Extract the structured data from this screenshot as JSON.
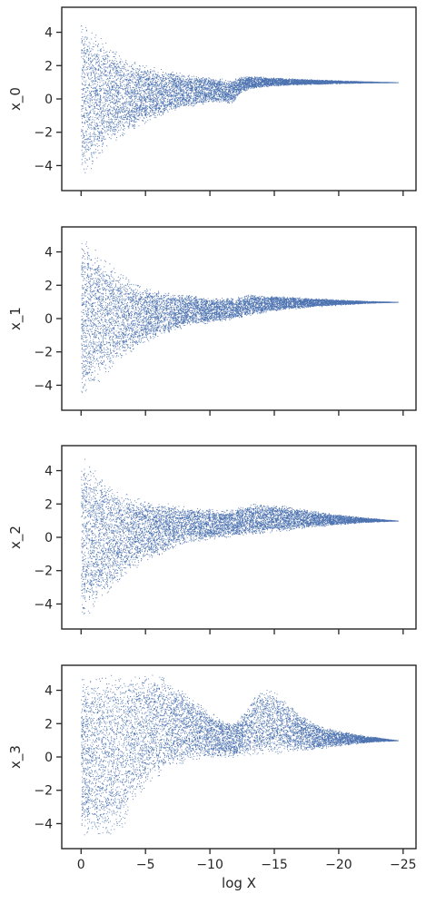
{
  "chart_data": {
    "type": "scatter",
    "layout": "4 stacked panels sharing x-axis",
    "xlabel": "log X",
    "x_axis": {
      "reversed": true,
      "xlim": [
        1.5,
        -26
      ],
      "ticks": [
        0,
        -5,
        -10,
        -15,
        -20,
        -25
      ],
      "tick_labels": [
        "0",
        "−5",
        "−10",
        "−15",
        "−20",
        "−25"
      ]
    },
    "y_axis": {
      "ylim": [
        -5.5,
        5.5
      ],
      "ticks": [
        -4,
        -2,
        0,
        2,
        4
      ],
      "tick_labels": [
        "−4",
        "−2",
        "0",
        "2",
        "4"
      ]
    },
    "grid": false,
    "marker_color": "#4c72b0",
    "panels": [
      {
        "ylabel": "x_0",
        "envelope": {
          "x": [
            0,
            -1,
            -2,
            -3,
            -4,
            -5,
            -6,
            -7,
            -8,
            -9,
            -10,
            -11,
            -11.8,
            -12.3,
            -13,
            -14,
            -15,
            -16,
            -18,
            -20,
            -22,
            -24.6
          ],
          "upper": [
            5,
            4.2,
            3.4,
            2.8,
            2.4,
            2.1,
            1.9,
            1.7,
            1.55,
            1.45,
            1.35,
            1.25,
            1.2,
            1.35,
            1.4,
            1.35,
            1.3,
            1.25,
            1.18,
            1.12,
            1.06,
            1.0
          ],
          "lower": [
            -5,
            -4.0,
            -3.0,
            -2.4,
            -1.9,
            -1.5,
            -1.1,
            -0.8,
            -0.55,
            -0.4,
            -0.3,
            -0.25,
            -0.25,
            0.3,
            0.6,
            0.7,
            0.78,
            0.83,
            0.88,
            0.93,
            0.97,
            1.0
          ]
        }
      },
      {
        "ylabel": "x_1",
        "envelope": {
          "x": [
            0,
            -1,
            -2,
            -3,
            -4,
            -5,
            -6,
            -7,
            -8,
            -9,
            -10,
            -11,
            -12,
            -13,
            -14,
            -15,
            -16,
            -18,
            -20,
            -22,
            -24.6
          ],
          "upper": [
            5,
            4.3,
            3.5,
            2.8,
            2.3,
            2.0,
            1.8,
            1.6,
            1.5,
            1.4,
            1.3,
            1.25,
            1.3,
            1.45,
            1.45,
            1.4,
            1.35,
            1.25,
            1.15,
            1.07,
            1.0
          ],
          "lower": [
            -5,
            -4.3,
            -3.4,
            -2.6,
            -2.0,
            -1.5,
            -1.1,
            -0.8,
            -0.55,
            -0.4,
            -0.25,
            -0.15,
            0.0,
            0.15,
            0.3,
            0.45,
            0.55,
            0.7,
            0.82,
            0.92,
            1.0
          ]
        }
      },
      {
        "ylabel": "x_2",
        "envelope": {
          "x": [
            0,
            -1,
            -2,
            -3,
            -4,
            -5,
            -6,
            -7,
            -8,
            -9,
            -10,
            -11,
            -12,
            -13,
            -14,
            -15,
            -16,
            -17,
            -18,
            -20,
            -22,
            -24.6
          ],
          "upper": [
            5,
            4.2,
            3.3,
            2.8,
            2.5,
            2.3,
            2.2,
            2.0,
            1.9,
            1.8,
            1.7,
            1.7,
            1.8,
            2.0,
            2.05,
            2.0,
            1.9,
            1.75,
            1.6,
            1.4,
            1.2,
            1.0
          ],
          "lower": [
            -5,
            -4.4,
            -3.6,
            -2.8,
            -2.0,
            -1.5,
            -1.1,
            -0.7,
            -0.4,
            -0.25,
            -0.15,
            -0.05,
            0.05,
            0.1,
            0.2,
            0.3,
            0.4,
            0.5,
            0.6,
            0.75,
            0.9,
            1.0
          ]
        }
      },
      {
        "ylabel": "x_3",
        "envelope": {
          "x": [
            0,
            -1,
            -2,
            -3,
            -4,
            -5,
            -6,
            -7,
            -8,
            -9,
            -10,
            -11,
            -12,
            -13,
            -14,
            -15,
            -16,
            -17,
            -18,
            -19,
            -20,
            -22,
            -24.6
          ],
          "upper": [
            5,
            5,
            5,
            5,
            5,
            5,
            5,
            4.6,
            4.0,
            3.4,
            2.8,
            2.3,
            2.1,
            3.2,
            4.2,
            4.0,
            3.3,
            2.6,
            2.1,
            1.8,
            1.6,
            1.3,
            1.0
          ],
          "lower": [
            -5,
            -5,
            -5,
            -4.9,
            -3.0,
            -2.0,
            -1.2,
            -0.7,
            -0.4,
            -0.2,
            -0.1,
            -0.05,
            0.0,
            0.05,
            0.1,
            0.15,
            0.25,
            0.35,
            0.45,
            0.55,
            0.65,
            0.85,
            1.0
          ]
        }
      }
    ]
  }
}
